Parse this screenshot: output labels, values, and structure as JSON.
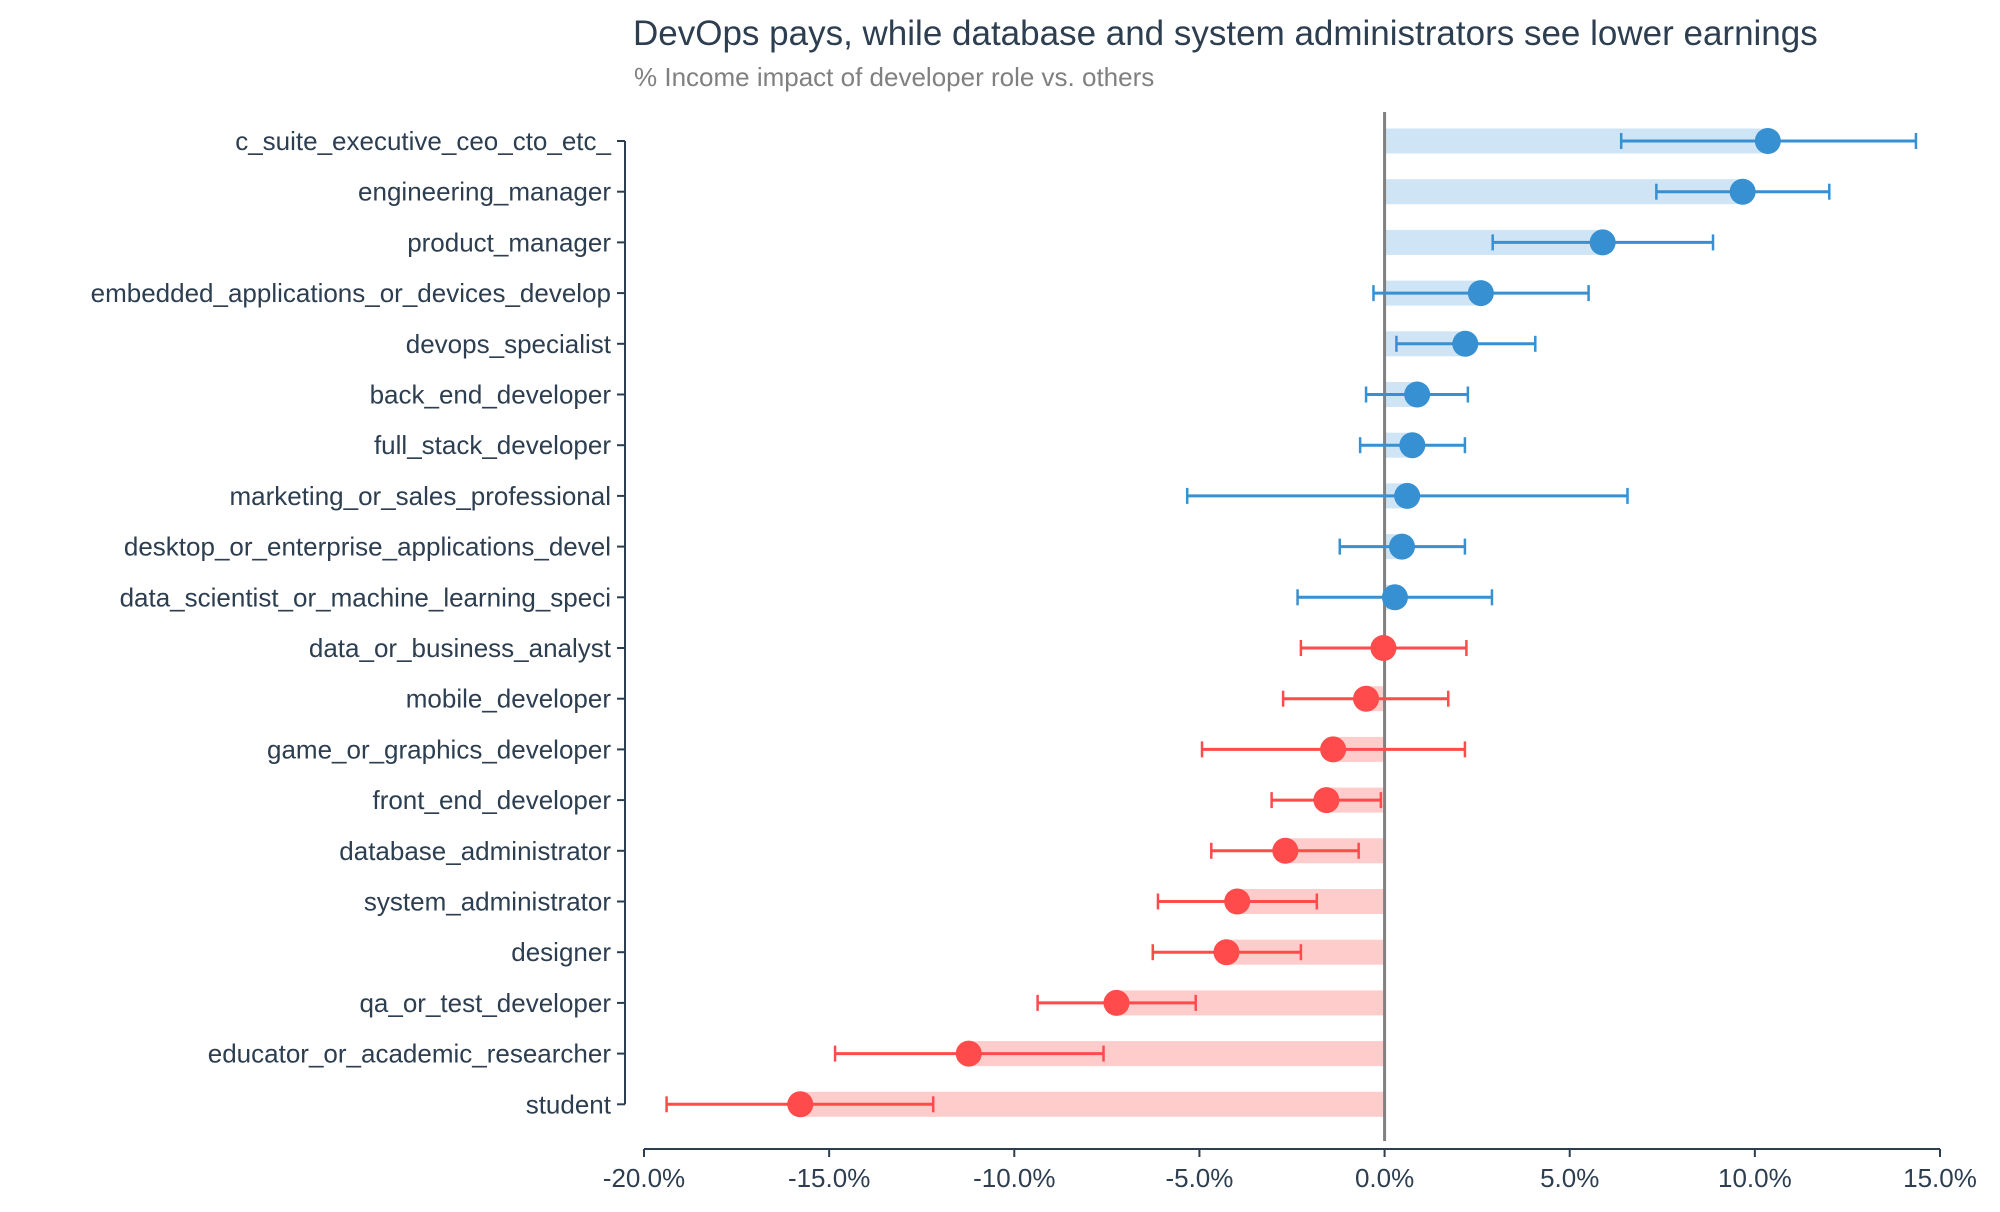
{
  "chart_data": {
    "type": "dot-errorbar",
    "title": "DevOps pays, while database and system administrators see lower earnings",
    "subtitle": "% Income impact of developer role vs. others",
    "xlabel": "",
    "ylabel": "",
    "xlim": [
      -20,
      15
    ],
    "x_ticks": [
      -20,
      -15,
      -10,
      -5,
      0,
      5,
      10,
      15
    ],
    "x_tick_labels": [
      "-20.0%",
      "-15.0%",
      "-10.0%",
      "-5.0%",
      "0.0%",
      "5.0%",
      "10.0%",
      "15.0%"
    ],
    "reference_line": 0,
    "grid": false,
    "legend": "none",
    "colors": {
      "positive": "#3690d2",
      "positive_bar": "#cfe4f4",
      "negative": "#ff4b4b",
      "negative_bar": "#ffcccc",
      "zero_line": "#808080"
    },
    "categories": [
      "c_suite_executive_ceo_cto_etc_",
      "engineering_manager",
      "product_manager",
      "embedded_applications_or_devices_develop",
      "devops_specialist",
      "back_end_developer",
      "full_stack_developer",
      "marketing_or_sales_professional",
      "desktop_or_enterprise_applications_devel",
      "data_scientist_or_machine_learning_speci",
      "data_or_business_analyst",
      "mobile_developer",
      "game_or_graphics_developer",
      "front_end_developer",
      "database_administrator",
      "system_administrator",
      "designer",
      "qa_or_test_developer",
      "educator_or_academic_researcher",
      "student"
    ],
    "values": [
      10.35,
      9.67,
      5.89,
      2.6,
      2.18,
      0.88,
      0.75,
      0.61,
      0.47,
      0.28,
      -0.03,
      -0.5,
      -1.39,
      -1.57,
      -2.68,
      -3.98,
      -4.27,
      -7.24,
      -11.23,
      -15.78
    ],
    "ci_low": [
      6.39,
      7.34,
      2.92,
      -0.3,
      0.32,
      -0.5,
      -0.66,
      -5.33,
      -1.21,
      -2.35,
      -2.26,
      -2.74,
      -4.93,
      -3.05,
      -4.68,
      -6.12,
      -6.26,
      -9.37,
      -14.84,
      -19.39
    ],
    "ci_high": [
      14.35,
      12.01,
      8.87,
      5.51,
      4.07,
      2.25,
      2.17,
      6.56,
      2.17,
      2.9,
      2.21,
      1.72,
      2.17,
      -0.1,
      -0.7,
      -1.83,
      -2.26,
      -5.1,
      -7.59,
      -12.19
    ]
  }
}
